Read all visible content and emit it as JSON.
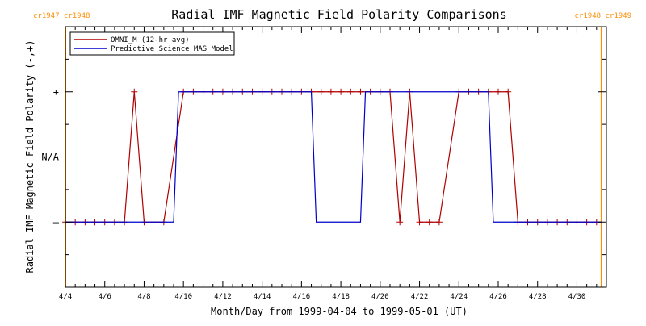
{
  "chart_data": {
    "type": "line",
    "title": "Radial IMF Magnetic Field Polarity Comparisons",
    "xlabel": "Month/Day from 1999-04-04 to 1999-05-01 (UT)",
    "ylabel": "Radial IMF Magnetic Field Polarity (-,+)",
    "x_ticks": [
      "4/4",
      "4/6",
      "4/8",
      "4/10",
      "4/12",
      "4/14",
      "4/16",
      "4/18",
      "4/20",
      "4/22",
      "4/24",
      "4/26",
      "4/28",
      "4/30"
    ],
    "y_ticks": [
      {
        "value": -1,
        "label": "–"
      },
      {
        "value": 0,
        "label": "N/A"
      },
      {
        "value": 1,
        "label": "+"
      }
    ],
    "xlim": [
      "1999-04-04T00:00",
      "1999-05-01T12:00"
    ],
    "ylim": [
      -2,
      2
    ],
    "x_minor_per_major": 4,
    "legend_position": "top-left",
    "rotations": [
      {
        "name": "cr1947",
        "x": "1999-04-04T00:00",
        "color": "#ff8c00",
        "label_above": "cr1947 cr1948"
      },
      {
        "name": "cr1948",
        "x": "1999-05-01T06:00",
        "color": "#ff8c00",
        "label_above": "cr1948 cr1949"
      }
    ],
    "series": [
      {
        "name": "OMNI_M (12-hr avg)",
        "color": "#b00000",
        "marker": "+",
        "points": [
          [
            "1999-04-04T00:00",
            -1
          ],
          [
            "1999-04-04T12:00",
            -1
          ],
          [
            "1999-04-05T00:00",
            -1
          ],
          [
            "1999-04-05T12:00",
            -1
          ],
          [
            "1999-04-06T00:00",
            -1
          ],
          [
            "1999-04-06T12:00",
            -1
          ],
          [
            "1999-04-07T00:00",
            -1
          ],
          [
            "1999-04-07T12:00",
            1
          ],
          [
            "1999-04-08T00:00",
            -1
          ],
          [
            "1999-04-09T00:00",
            -1
          ],
          [
            "1999-04-10T00:00",
            1
          ],
          [
            "1999-04-10T12:00",
            1
          ],
          [
            "1999-04-11T00:00",
            1
          ],
          [
            "1999-04-11T12:00",
            1
          ],
          [
            "1999-04-12T00:00",
            1
          ],
          [
            "1999-04-12T12:00",
            1
          ],
          [
            "1999-04-13T00:00",
            1
          ],
          [
            "1999-04-13T12:00",
            1
          ],
          [
            "1999-04-14T00:00",
            1
          ],
          [
            "1999-04-14T12:00",
            1
          ],
          [
            "1999-04-15T00:00",
            1
          ],
          [
            "1999-04-15T12:00",
            1
          ],
          [
            "1999-04-16T00:00",
            1
          ],
          [
            "1999-04-16T12:00",
            1
          ],
          [
            "1999-04-17T00:00",
            1
          ],
          [
            "1999-04-17T12:00",
            1
          ],
          [
            "1999-04-18T00:00",
            1
          ],
          [
            "1999-04-18T12:00",
            1
          ],
          [
            "1999-04-19T00:00",
            1
          ],
          [
            "1999-04-19T12:00",
            1
          ],
          [
            "1999-04-20T00:00",
            1
          ],
          [
            "1999-04-20T12:00",
            1
          ],
          [
            "1999-04-21T00:00",
            -1
          ],
          [
            "1999-04-21T12:00",
            1
          ],
          [
            "1999-04-22T00:00",
            -1
          ],
          [
            "1999-04-22T12:00",
            -1
          ],
          [
            "1999-04-23T00:00",
            -1
          ],
          [
            "1999-04-24T00:00",
            1
          ],
          [
            "1999-04-24T12:00",
            1
          ],
          [
            "1999-04-25T00:00",
            1
          ],
          [
            "1999-04-25T12:00",
            1
          ],
          [
            "1999-04-26T00:00",
            1
          ],
          [
            "1999-04-26T12:00",
            1
          ],
          [
            "1999-04-27T00:00",
            -1
          ],
          [
            "1999-04-27T12:00",
            -1
          ],
          [
            "1999-04-28T00:00",
            -1
          ],
          [
            "1999-04-28T12:00",
            -1
          ],
          [
            "1999-04-29T00:00",
            -1
          ],
          [
            "1999-04-29T12:00",
            -1
          ],
          [
            "1999-04-30T00:00",
            -1
          ],
          [
            "1999-04-30T12:00",
            -1
          ],
          [
            "1999-05-01T00:00",
            -1
          ]
        ]
      },
      {
        "name": "Predictive Science MAS Model",
        "color": "#0000cc",
        "marker": "none",
        "points": [
          [
            "1999-04-04T00:00",
            -1
          ],
          [
            "1999-04-09T12:00",
            -1
          ],
          [
            "1999-04-09T18:00",
            1
          ],
          [
            "1999-04-16T12:00",
            1
          ],
          [
            "1999-04-16T18:00",
            -1
          ],
          [
            "1999-04-19T00:00",
            -1
          ],
          [
            "1999-04-19T06:00",
            1
          ],
          [
            "1999-04-25T12:00",
            1
          ],
          [
            "1999-04-25T18:00",
            -1
          ],
          [
            "1999-05-01T06:00",
            -1
          ]
        ]
      }
    ]
  }
}
